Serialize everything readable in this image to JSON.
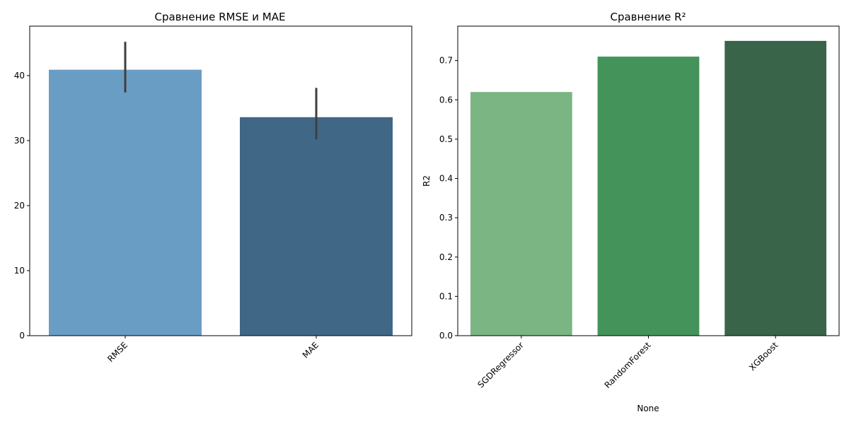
{
  "chart_data": [
    {
      "type": "bar",
      "title": "Сравнение RMSE и MAE",
      "xlabel": "",
      "ylabel": "",
      "categories": [
        "RMSE",
        "MAE"
      ],
      "values": [
        40.9,
        33.6
      ],
      "error_low": [
        37.4,
        30.2
      ],
      "error_high": [
        45.2,
        38.1
      ],
      "ylim": [
        0,
        47.6
      ],
      "yticks": [
        0,
        10,
        20,
        30,
        40
      ],
      "colors": [
        "#6a9dc4",
        "#416787"
      ],
      "errorbar_color": "#3f3f3f",
      "grid": false,
      "legend": "none"
    },
    {
      "type": "bar",
      "title": "Сравнение R²",
      "xlabel": "None",
      "ylabel": "R2",
      "categories": [
        "SGDRegressor",
        "RandomForest",
        "XGBoost"
      ],
      "values": [
        0.62,
        0.71,
        0.75
      ],
      "ylim": [
        0,
        0.7875
      ],
      "yticks": [
        0.0,
        0.1,
        0.2,
        0.3,
        0.4,
        0.5,
        0.6,
        0.7
      ],
      "ytick_labels": [
        "0.0",
        "0.1",
        "0.2",
        "0.3",
        "0.4",
        "0.5",
        "0.6",
        "0.7"
      ],
      "colors": [
        "#7bb583",
        "#43935a",
        "#3a6449"
      ],
      "grid": false,
      "legend": "none"
    }
  ]
}
